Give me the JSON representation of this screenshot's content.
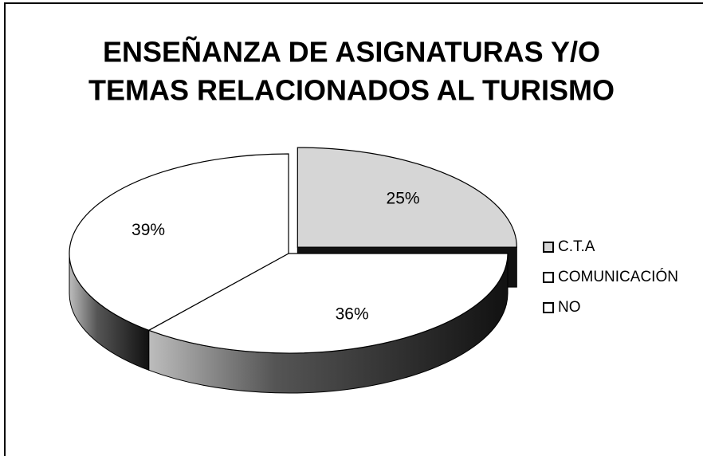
{
  "chart_data": {
    "type": "pie",
    "title": [
      "ENSEÑANZA DE ASIGNATURAS Y/O",
      "TEMAS RELACIONADOS AL TURISMO"
    ],
    "categories": [
      "C.T.A",
      "COMUNICACIÓN",
      "NO"
    ],
    "values": [
      25,
      36,
      39
    ],
    "value_labels": [
      "25%",
      "36%",
      "39%"
    ],
    "colors": [
      "#d6d6d6",
      "#ffffff",
      "#ffffff"
    ],
    "legend": "right"
  }
}
